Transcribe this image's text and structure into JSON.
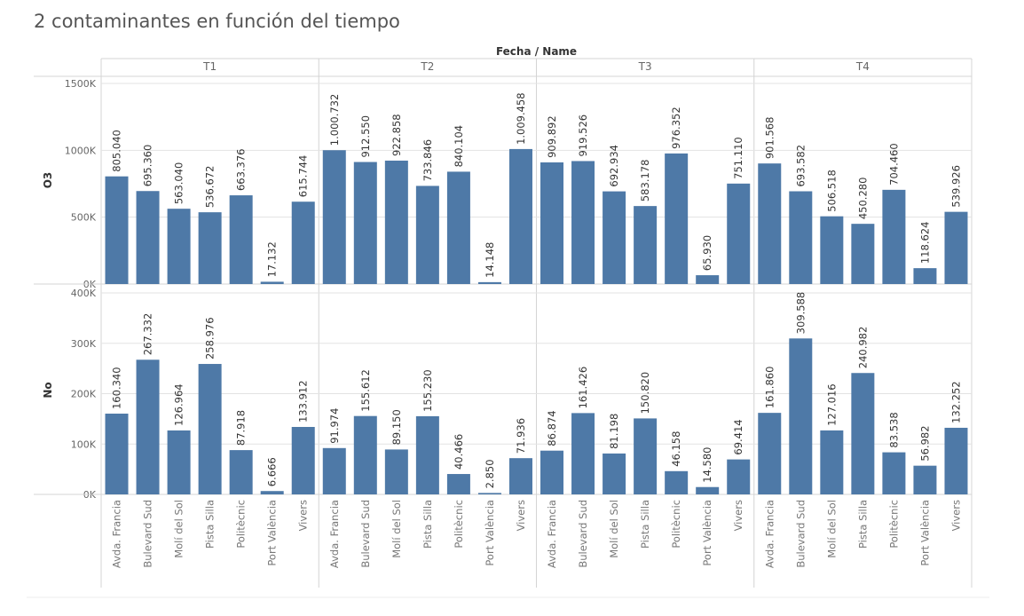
{
  "title": "2 contaminantes en función del tiempo",
  "chart_data": {
    "type": "bar",
    "title": "2 contaminantes en función del tiempo",
    "column_header": "Fecha / Name",
    "periods": [
      "T1",
      "T2",
      "T3",
      "T4"
    ],
    "categories": [
      "Avda. Francia",
      "Bulevard Sud",
      "Molí del Sol",
      "Pista Silla",
      "Politècnic",
      "Port València",
      "Vivers"
    ],
    "bar_color": "#4e79a7",
    "grid": true,
    "rows": [
      {
        "measure": "O3",
        "ylim": [
          0,
          1500000
        ],
        "yticks": [
          0,
          500000,
          1000000,
          1500000
        ],
        "ytick_labels": [
          "0K",
          "500K",
          "1000K",
          "1500K"
        ],
        "values": [
          [
            805040,
            695360,
            563040,
            536672,
            663376,
            17132,
            615744
          ],
          [
            1000732,
            912550,
            922858,
            733846,
            840104,
            14148,
            1009458
          ],
          [
            909892,
            919526,
            692934,
            583178,
            976352,
            65930,
            751110
          ],
          [
            901568,
            693582,
            506518,
            450280,
            704460,
            118624,
            539926
          ]
        ],
        "labels": [
          [
            "805.040",
            "695.360",
            "563.040",
            "536.672",
            "663.376",
            "17.132",
            "615.744"
          ],
          [
            "1.000.732",
            "912.550",
            "922.858",
            "733.846",
            "840.104",
            "14.148",
            "1.009.458"
          ],
          [
            "909.892",
            "919.526",
            "692.934",
            "583.178",
            "976.352",
            "65.930",
            "751.110"
          ],
          [
            "901.568",
            "693.582",
            "506.518",
            "450.280",
            "704.460",
            "118.624",
            "539.926"
          ]
        ]
      },
      {
        "measure": "No",
        "ylim": [
          0,
          400000
        ],
        "yticks": [
          0,
          100000,
          200000,
          300000,
          400000
        ],
        "ytick_labels": [
          "0K",
          "100K",
          "200K",
          "300K",
          "400K"
        ],
        "values": [
          [
            160340,
            267332,
            126964,
            258976,
            87918,
            6666,
            133912
          ],
          [
            91974,
            155612,
            89150,
            155230,
            40466,
            2850,
            71936
          ],
          [
            86874,
            161426,
            81198,
            150820,
            46158,
            14580,
            69414
          ],
          [
            161860,
            309588,
            127016,
            240982,
            83538,
            56982,
            132252
          ]
        ],
        "labels": [
          [
            "160.340",
            "267.332",
            "126.964",
            "258.976",
            "87.918",
            "6.666",
            "133.912"
          ],
          [
            "91.974",
            "155.612",
            "89.150",
            "155.230",
            "40.466",
            "2.850",
            "71.936"
          ],
          [
            "86.874",
            "161.426",
            "81.198",
            "150.820",
            "46.158",
            "14.580",
            "69.414"
          ],
          [
            "161.860",
            "309.588",
            "127.016",
            "240.982",
            "83.538",
            "56.982",
            "132.252"
          ]
        ]
      }
    ]
  }
}
